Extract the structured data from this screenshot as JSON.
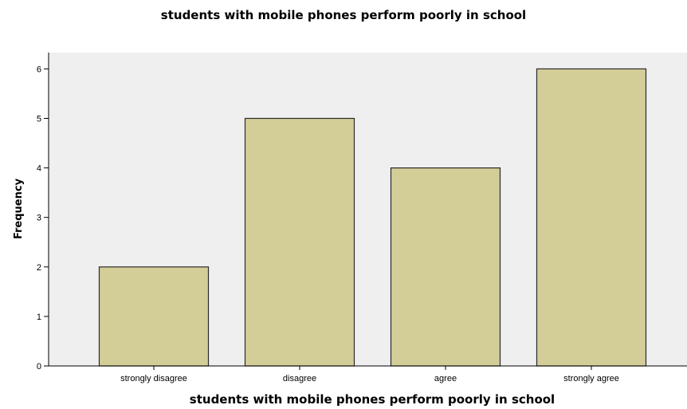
{
  "chart_data": {
    "type": "bar",
    "title": "students with mobile phones perform poorly in school",
    "xlabel": "students with mobile phones perform poorly in school",
    "ylabel": "Frequency",
    "categories": [
      "strongly disagree",
      "disagree",
      "agree",
      "strongly agree"
    ],
    "values": [
      2,
      5,
      4,
      6
    ],
    "ylim": [
      0,
      6.3
    ],
    "yticks": [
      "0",
      "1",
      "2",
      "3",
      "4",
      "5",
      "6"
    ],
    "grid": false,
    "legend": "none",
    "colors": {
      "bar_fill": "#d3cd98",
      "bar_stroke": "#2b2b2b",
      "plot_background": "#efefef",
      "axis": "#000000"
    }
  }
}
